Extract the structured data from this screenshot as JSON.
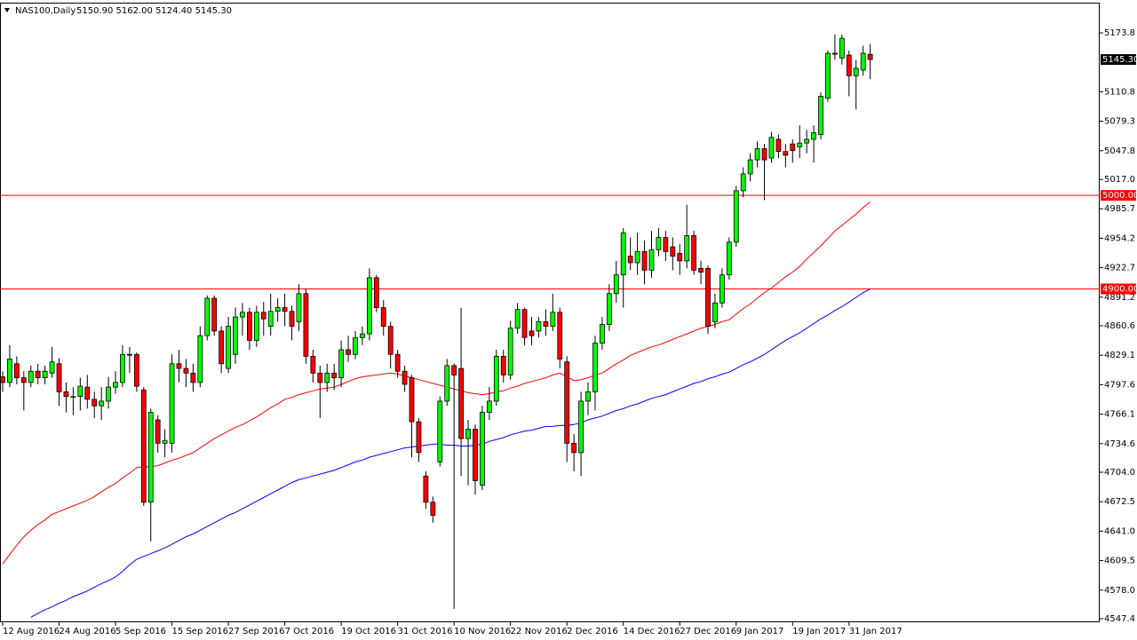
{
  "chart_data": {
    "type": "candlestick",
    "title": "NAS100,Daily",
    "subtitle": "5150.90 5162.00 5124.40 5145.30",
    "categories": [
      "12 Aug 2016",
      null,
      null,
      null,
      null,
      null,
      null,
      null,
      "24 Aug 2016",
      null,
      null,
      null,
      null,
      null,
      null,
      null,
      "5 Sep 2016",
      null,
      null,
      null,
      null,
      null,
      null,
      null,
      "15 Sep 2016",
      null,
      null,
      null,
      null,
      null,
      null,
      null,
      "27 Sep 2016",
      null,
      null,
      null,
      null,
      null,
      null,
      null,
      "7 Oct 2016",
      null,
      null,
      null,
      null,
      null,
      null,
      null,
      "19 Oct 2016",
      null,
      null,
      null,
      null,
      null,
      null,
      null,
      "31 Oct 2016",
      null,
      null,
      null,
      null,
      null,
      null,
      null,
      "10 Nov 2016",
      null,
      null,
      null,
      null,
      null,
      null,
      null,
      "22 Nov 2016",
      null,
      null,
      null,
      null,
      null,
      null,
      null,
      "2 Dec 2016",
      null,
      null,
      null,
      null,
      null,
      null,
      null,
      "14 Dec 2016",
      null,
      null,
      null,
      null,
      null,
      null,
      null,
      "27 Dec 2016",
      null,
      null,
      null,
      null,
      null,
      null,
      null,
      "9 Jan 2017",
      null,
      null,
      null,
      null,
      null,
      null,
      null,
      "19 Jan 2017",
      null,
      null,
      null,
      null,
      null,
      null,
      null,
      "31 Jan 2017",
      null,
      null,
      null
    ],
    "open": [
      4806,
      4800,
      4820,
      4805,
      4800,
      4812,
      4805,
      4810,
      4820,
      4790,
      4785,
      4785,
      4795,
      4782,
      4775,
      4780,
      4795,
      4800,
      4830,
      4830,
      4792,
      4672,
      4760,
      4735,
      4735,
      4820,
      4815,
      4810,
      4800,
      4850,
      4890,
      4855,
      4815,
      4830,
      4870,
      4875,
      4845,
      4875,
      4860,
      4876,
      4880,
      4876,
      4865,
      4895,
      4828,
      4810,
      4800,
      4810,
      4805,
      4835,
      4830,
      4848,
      4852,
      4912,
      4880,
      4860,
      4830,
      4812,
      4805,
      4758,
      4700,
      4672,
      4715,
      4780,
      4818,
      4815,
      4740,
      4750,
      4690,
      4768,
      4780,
      4828,
      4808,
      4858,
      4878,
      4855,
      4855,
      4865,
      4860,
      4875,
      4822,
      4735,
      4725,
      4780,
      4790,
      4842,
      4862,
      4895,
      4915,
      4935,
      4928,
      4940,
      4920,
      4942,
      4955,
      4945,
      4938,
      4930,
      4957,
      4922,
      4922,
      4865,
      4885,
      4915,
      4950,
      5005,
      5023,
      5038,
      5050,
      5040,
      5060,
      5047,
      5055,
      5052,
      5056,
      5060,
      5065,
      5104,
      5152,
      5147,
      5150,
      5128,
      5134,
      5150.9
    ],
    "high": [
      4812,
      4840,
      4828,
      4812,
      4818,
      4820,
      4818,
      4838,
      4826,
      4800,
      4795,
      4805,
      4808,
      4790,
      4795,
      4806,
      4812,
      4840,
      4838,
      4832,
      4795,
      4772,
      4765,
      4750,
      4830,
      4835,
      4825,
      4820,
      4860,
      4893,
      4893,
      4860,
      4870,
      4880,
      4885,
      4880,
      4882,
      4886,
      4895,
      4890,
      4895,
      4882,
      4905,
      4900,
      4835,
      4818,
      4820,
      4820,
      4845,
      4850,
      4855,
      4860,
      4922,
      4915,
      4888,
      4865,
      4835,
      4818,
      4808,
      4762,
      4705,
      4678,
      4785,
      4825,
      4820,
      4880,
      4760,
      4755,
      4775,
      4795,
      4835,
      4835,
      4866,
      4885,
      4880,
      4870,
      4870,
      4878,
      4895,
      4880,
      4828,
      4745,
      4790,
      4800,
      4850,
      4870,
      4905,
      4930,
      4965,
      4955,
      4960,
      4952,
      4962,
      4965,
      4962,
      4955,
      4948,
      4990,
      4962,
      4930,
      4925,
      4895,
      4922,
      4955,
      5010,
      5030,
      5045,
      5058,
      5055,
      5068,
      5065,
      5055,
      5060,
      5075,
      5070,
      5075,
      5110,
      5155,
      5172,
      5172,
      5155,
      5145,
      5160,
      5162
    ],
    "low": [
      4790,
      4795,
      4798,
      4770,
      4795,
      4798,
      4798,
      4805,
      4775,
      4768,
      4765,
      4770,
      4772,
      4762,
      4760,
      4772,
      4788,
      4795,
      4810,
      4790,
      4668,
      4630,
      4725,
      4720,
      4725,
      4800,
      4795,
      4790,
      4795,
      4845,
      4850,
      4810,
      4810,
      4820,
      4850,
      4835,
      4838,
      4850,
      4850,
      4865,
      4860,
      4845,
      4855,
      4820,
      4800,
      4762,
      4790,
      4792,
      4795,
      4822,
      4825,
      4840,
      4845,
      4875,
      4850,
      4815,
      4805,
      4790,
      4720,
      4715,
      4665,
      4650,
      4710,
      4775,
      4558,
      4700,
      4690,
      4680,
      4685,
      4760,
      4775,
      4800,
      4803,
      4852,
      4840,
      4840,
      4848,
      4850,
      4855,
      4815,
      4715,
      4705,
      4700,
      4765,
      4770,
      4835,
      4855,
      4885,
      4880,
      4920,
      4915,
      4905,
      4912,
      4935,
      4930,
      4920,
      4915,
      4922,
      4915,
      4905,
      4852,
      4858,
      4880,
      4910,
      4945,
      4998,
      5015,
      5030,
      4995,
      5035,
      5040,
      5030,
      5035,
      5040,
      5045,
      5035,
      5060,
      5100,
      5145,
      5140,
      5106,
      5092,
      5128,
      5124.4
    ],
    "close": [
      4800,
      4825,
      4805,
      4800,
      4812,
      4805,
      4812,
      4822,
      4790,
      4785,
      4785,
      4796,
      4782,
      4775,
      4780,
      4795,
      4800,
      4830,
      4830,
      4796,
      4672,
      4768,
      4735,
      4738,
      4820,
      4815,
      4810,
      4800,
      4850,
      4890,
      4855,
      4820,
      4860,
      4870,
      4875,
      4845,
      4875,
      4868,
      4876,
      4880,
      4876,
      4860,
      4895,
      4828,
      4810,
      4800,
      4810,
      4805,
      4835,
      4830,
      4848,
      4852,
      4912,
      4880,
      4860,
      4830,
      4812,
      4798,
      4758,
      4725,
      4672,
      4658,
      4780,
      4818,
      4808,
      4740,
      4750,
      4695,
      4768,
      4780,
      4828,
      4808,
      4858,
      4878,
      4848,
      4850,
      4865,
      4860,
      4875,
      4825,
      4735,
      4725,
      4780,
      4790,
      4842,
      4862,
      4895,
      4915,
      4960,
      4928,
      4940,
      4920,
      4942,
      4955,
      4940,
      4935,
      4930,
      4957,
      4920,
      4918,
      4860,
      4885,
      4915,
      4950,
      5005,
      5023,
      5038,
      5050,
      5038,
      5062,
      5047,
      5043,
      5048,
      5056,
      5060,
      5067,
      5106,
      5152,
      5151,
      5168,
      5128,
      5136,
      5152,
      5145.3
    ],
    "up_color": "#00ff00",
    "down_color": "#ff0000",
    "series": [
      {
        "color": "#ff0000",
        "values": [
          4606,
          4616,
          4626,
          4635,
          4642,
          4648,
          4653,
          4659,
          4662,
          4665,
          4668,
          4671,
          4674,
          4678,
          4683,
          4688,
          4692,
          4698,
          4703,
          4709,
          4710,
          4710,
          4711,
          4714,
          4717,
          4719,
          4722,
          4725,
          4730,
          4735,
          4740,
          4744,
          4748,
          4752,
          4755,
          4759,
          4763,
          4768,
          4773,
          4777,
          4782,
          4784,
          4787,
          4789,
          4791,
          4793,
          4794,
          4795,
          4798,
          4801,
          4804,
          4806,
          4807,
          4808,
          4809,
          4810,
          4809,
          4807,
          4805,
          4803,
          4801,
          4799,
          4797,
          4795,
          4793,
          4791,
          4789,
          4788,
          4787,
          4788,
          4790,
          4791,
          4794,
          4796,
          4799,
          4801,
          4803,
          4805,
          4808,
          4810,
          4806,
          4802,
          4803,
          4805,
          4808,
          4810,
          4815,
          4820,
          4824,
          4829,
          4832,
          4835,
          4838,
          4840,
          4843,
          4846,
          4849,
          4852,
          4855,
          4858,
          4860,
          4862,
          4865,
          4867,
          4873,
          4879,
          4884,
          4890,
          4896,
          4901,
          4907,
          4913,
          4918,
          4924,
          4932,
          4939,
          4946,
          4954,
          4962,
          4968,
          4974,
          4980,
          4987,
          4993
        ]
      },
      {
        "color": "#0000ff",
        "values": [
          null,
          null,
          null,
          null,
          4549,
          4553,
          4557,
          4560,
          4564,
          4567,
          4571,
          4574,
          4577,
          4581,
          4585,
          4588,
          4592,
          4598,
          4605,
          4611,
          4614,
          4617,
          4620,
          4623,
          4627,
          4631,
          4635,
          4638,
          4642,
          4646,
          4650,
          4654,
          4658,
          4661,
          4665,
          4669,
          4673,
          4677,
          4681,
          4685,
          4689,
          4693,
          4696,
          4698,
          4700,
          4702,
          4704,
          4706,
          4709,
          4712,
          4715,
          4717,
          4720,
          4722,
          4724,
          4726,
          4728,
          4730,
          4731,
          4732,
          4733,
          4734,
          4734,
          4733,
          4733,
          4732,
          4732,
          4733,
          4734,
          4737,
          4739,
          4741,
          4744,
          4746,
          4748,
          4749,
          4751,
          4753,
          4753,
          4754,
          4754,
          4755,
          4757,
          4760,
          4762,
          4764,
          4767,
          4770,
          4772,
          4775,
          4777,
          4780,
          4783,
          4785,
          4787,
          4790,
          4793,
          4796,
          4799,
          4801,
          4804,
          4806,
          4809,
          4811,
          4815,
          4819,
          4822,
          4826,
          4830,
          4835,
          4840,
          4845,
          4849,
          4853,
          4858,
          4863,
          4868,
          4872,
          4877,
          4881,
          4886,
          4891,
          4896,
          4900
        ]
      }
    ],
    "hlines": [
      {
        "value": 5000,
        "label": "5000.00"
      },
      {
        "value": 4900,
        "label": "4900.00"
      }
    ],
    "hline_color": "#ff0000",
    "last_price": {
      "value": 5145.3,
      "label": "5145.30"
    },
    "ylim": [
      4543.6,
      5204.2
    ],
    "yticks": [
      5173.8,
      5110.8,
      5079.3,
      5047.8,
      {
        "value": 5017,
        "label": "5017.0"
      },
      4985.7,
      4954.2,
      4922.7,
      4891.2,
      4860.6,
      4829.1,
      4797.6,
      4766.1,
      4734.6,
      {
        "value": 4704,
        "label": "4704.0"
      },
      4672.5,
      {
        "value": 4641,
        "label": "4641.0"
      },
      4609.5,
      {
        "value": 4578,
        "label": "4578.0"
      },
      4547.4
    ]
  }
}
